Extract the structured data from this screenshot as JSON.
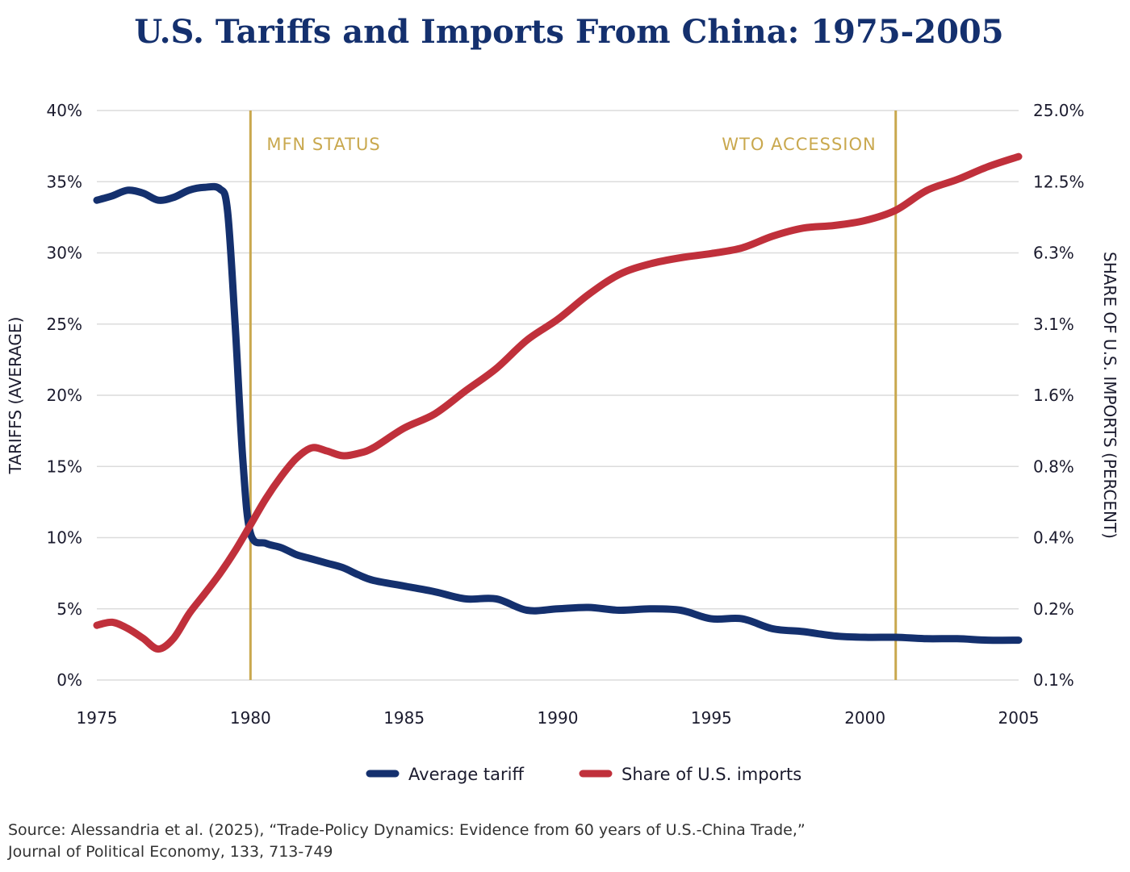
{
  "chart_data": {
    "type": "line",
    "title": "U.S. Tariffs and Imports From China: 1975-2005",
    "xlabel": "",
    "ylabel_left": "TARIFFS (AVERAGE)",
    "ylabel_right": "SHARE OF U.S. IMPORTS (PERCENT)",
    "x_ticks": [
      "1975",
      "1980",
      "1985",
      "1990",
      "1995",
      "2000",
      "2005"
    ],
    "y_left_ticks": [
      "0%",
      "5%",
      "10%",
      "15%",
      "20%",
      "25%",
      "30%",
      "35%",
      "40%"
    ],
    "y_right_ticks": [
      "0.1%",
      "0.2%",
      "0.4%",
      "0.8%",
      "1.6%",
      "3.1%",
      "6.3%",
      "12.5%",
      "25.0%"
    ],
    "xlim": [
      1975,
      2005
    ],
    "ylim_left": [
      0,
      40
    ],
    "ylim_right": [
      0.1,
      25.0
    ],
    "y_right_scale": "log",
    "grid": true,
    "legend_placement": "bottom-center",
    "annotations": [
      {
        "label": "MFN STATUS",
        "x": 1980
      },
      {
        "label": "WTO ACCESSION",
        "x": 2001
      }
    ],
    "series": [
      {
        "name": "Average tariff",
        "axis": "left",
        "color": "#14306e",
        "x": [
          1975,
          1975.5,
          1976,
          1976.5,
          1977,
          1977.5,
          1978,
          1978.5,
          1979,
          1979.25,
          1979.5,
          1979.75,
          1980,
          1980.5,
          1981,
          1981.5,
          1982,
          1982.5,
          1983,
          1983.5,
          1984,
          1985,
          1986,
          1987,
          1988,
          1989,
          1990,
          1991,
          1992,
          1993,
          1994,
          1995,
          1996,
          1997,
          1998,
          1999,
          2000,
          2001,
          2002,
          2003,
          2004,
          2005
        ],
        "values": [
          33.7,
          34.0,
          34.4,
          34.2,
          33.7,
          33.9,
          34.4,
          34.6,
          34.5,
          33.0,
          25.0,
          15.5,
          10.3,
          9.6,
          9.3,
          8.8,
          8.5,
          8.2,
          7.9,
          7.4,
          7.0,
          6.6,
          6.2,
          5.7,
          5.7,
          4.9,
          5.0,
          5.1,
          4.9,
          5.0,
          4.9,
          4.3,
          4.3,
          3.6,
          3.4,
          3.1,
          3.0,
          3.0,
          2.9,
          2.9,
          2.8,
          2.8
        ]
      },
      {
        "name": "Share of U.S. imports",
        "axis": "right",
        "color": "#c0303b",
        "x": [
          1975,
          1975.5,
          1976,
          1976.5,
          1977,
          1977.5,
          1978,
          1978.5,
          1979,
          1979.5,
          1980,
          1980.5,
          1981,
          1981.5,
          1982,
          1982.5,
          1983,
          1983.5,
          1984,
          1985,
          1986,
          1987,
          1988,
          1989,
          1990,
          1991,
          1992,
          1993,
          1994,
          1995,
          1996,
          1997,
          1998,
          1999,
          2000,
          2001,
          2002,
          2003,
          2004,
          2005
        ],
        "values": [
          0.17,
          0.175,
          0.165,
          0.15,
          0.135,
          0.15,
          0.19,
          0.23,
          0.28,
          0.35,
          0.45,
          0.58,
          0.72,
          0.86,
          0.95,
          0.92,
          0.88,
          0.9,
          0.95,
          1.15,
          1.32,
          1.65,
          2.05,
          2.7,
          3.3,
          4.2,
          5.1,
          5.65,
          6.0,
          6.25,
          6.6,
          7.4,
          8.0,
          8.2,
          8.6,
          9.5,
          11.5,
          12.8,
          14.5,
          16.0
        ]
      }
    ]
  },
  "source": {
    "line1": "Source: Alessandria et al. (2025), “Trade-Policy Dynamics: Evidence from 60 years of U.S.-China Trade,”",
    "line2": "Journal of Political Economy, 133, 713-749"
  }
}
